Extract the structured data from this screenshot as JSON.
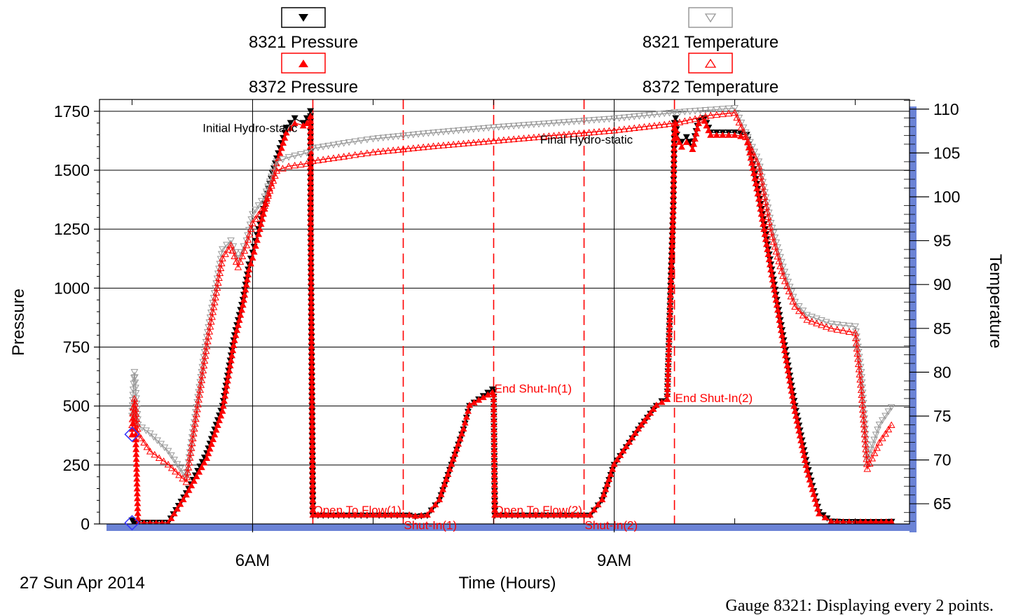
{
  "chart_data": {
    "type": "line",
    "xlabel": "Time (Hours)",
    "ylabel": "Pressure",
    "y2label": "Temperature",
    "date_label": "27 Sun Apr 2014",
    "footnote": "Gauge 8321: Displaying every 2 points.",
    "x_ticks": [
      {
        "x": 6,
        "label": "6AM"
      },
      {
        "x": 9,
        "label": "9AM"
      }
    ],
    "xlim": [
      4.73,
      11.45
    ],
    "ylim": [
      0,
      1800
    ],
    "y_ticks": [
      0,
      250,
      500,
      750,
      1000,
      1250,
      1500,
      1750
    ],
    "y2lim": [
      62.7,
      111.1
    ],
    "y2_ticks": [
      65,
      70,
      75,
      80,
      85,
      90,
      95,
      100,
      105,
      110
    ],
    "grid": true,
    "legend_position": "top",
    "legend": [
      {
        "name": "8321 Pressure",
        "marker": "filled-down-triangle",
        "color": "#000000"
      },
      {
        "name": "8372 Pressure",
        "marker": "filled-up-triangle",
        "color": "#ff0000"
      },
      {
        "name": "8321 Temperature",
        "marker": "hollow-down-triangle",
        "color": "#999999"
      },
      {
        "name": "8372 Temperature",
        "marker": "hollow-up-triangle",
        "color": "#ff0000"
      }
    ],
    "series": [
      {
        "name": "8321 Pressure",
        "axis": "left",
        "color": "#000000",
        "marker": "filled-down-triangle",
        "x": [
          5.0,
          5.01,
          5.02,
          5.03,
          5.05,
          5.15,
          5.3,
          5.45,
          5.62,
          5.75,
          5.85,
          5.92,
          5.97,
          6.0,
          6.05,
          6.12,
          6.2,
          6.28,
          6.35,
          6.42,
          6.45,
          6.48,
          6.481,
          6.5,
          6.8,
          7.0,
          7.2,
          7.3,
          7.35,
          7.45,
          7.55,
          7.65,
          7.75,
          7.8,
          7.99,
          8.0,
          8.01,
          8.2,
          8.4,
          8.6,
          8.75,
          8.8,
          8.9,
          9.0,
          9.2,
          9.35,
          9.44,
          9.49,
          9.5,
          9.51,
          9.52,
          9.56,
          9.6,
          9.65,
          9.7,
          9.75,
          9.8,
          10.0,
          10.1,
          10.2,
          10.3,
          10.4,
          10.5,
          10.6,
          10.7,
          10.8,
          10.9,
          11.0,
          11.3
        ],
        "y": [
          15,
          10,
          8,
          5,
          5,
          5,
          5,
          130,
          300,
          500,
          800,
          950,
          1100,
          1150,
          1250,
          1400,
          1550,
          1680,
          1720,
          1700,
          1720,
          1750,
          1320,
          35,
          35,
          35,
          35,
          35,
          30,
          35,
          100,
          250,
          400,
          500,
          570,
          560,
          35,
          35,
          35,
          35,
          35,
          35,
          100,
          250,
          400,
          500,
          540,
          1350,
          1700,
          1720,
          1650,
          1620,
          1640,
          1600,
          1710,
          1720,
          1660,
          1660,
          1650,
          1400,
          1100,
          800,
          500,
          250,
          50,
          10,
          8,
          8,
          8
        ]
      },
      {
        "name": "8372 Pressure",
        "axis": "left",
        "color": "#ff0000",
        "marker": "filled-up-triangle",
        "x": [
          5.0,
          5.01,
          5.02,
          5.03,
          5.05,
          5.15,
          5.3,
          5.45,
          5.62,
          5.75,
          5.85,
          5.92,
          5.97,
          6.0,
          6.05,
          6.12,
          6.2,
          6.28,
          6.35,
          6.42,
          6.45,
          6.48,
          6.481,
          6.5,
          6.8,
          7.0,
          7.2,
          7.3,
          7.35,
          7.45,
          7.55,
          7.65,
          7.75,
          7.8,
          7.99,
          8.0,
          8.01,
          8.2,
          8.4,
          8.6,
          8.75,
          8.8,
          8.9,
          9.0,
          9.2,
          9.35,
          9.44,
          9.49,
          9.5,
          9.51,
          9.52,
          9.56,
          9.6,
          9.65,
          9.7,
          9.75,
          9.8,
          10.0,
          10.1,
          10.2,
          10.3,
          10.4,
          10.5,
          10.6,
          10.7,
          10.8,
          10.9,
          11.0,
          11.3
        ],
        "y": [
          380,
          450,
          520,
          380,
          5,
          5,
          5,
          125,
          280,
          480,
          780,
          930,
          1080,
          1130,
          1230,
          1380,
          1530,
          1660,
          1700,
          1690,
          1700,
          1730,
          1300,
          40,
          40,
          40,
          40,
          40,
          35,
          40,
          105,
          255,
          405,
          505,
          560,
          550,
          40,
          40,
          40,
          40,
          40,
          40,
          105,
          255,
          405,
          505,
          530,
          1330,
          1680,
          1700,
          1640,
          1600,
          1620,
          1590,
          1700,
          1710,
          1650,
          1650,
          1640,
          1380,
          1080,
          780,
          480,
          230,
          45,
          12,
          10,
          10,
          10
        ]
      },
      {
        "name": "8321 Temperature",
        "axis": "right",
        "color": "#999999",
        "marker": "hollow-down-triangle",
        "x": [
          5.0,
          5.01,
          5.02,
          5.05,
          5.15,
          5.3,
          5.45,
          5.62,
          5.75,
          5.82,
          5.88,
          5.95,
          6.0,
          6.1,
          6.2,
          6.3,
          6.45,
          6.5,
          6.8,
          7.0,
          7.5,
          8.0,
          8.5,
          9.0,
          9.5,
          9.8,
          10.0,
          10.2,
          10.3,
          10.4,
          10.5,
          10.6,
          10.8,
          11.0,
          11.05,
          11.1,
          11.2,
          11.3
        ],
        "y": [
          75,
          78,
          80,
          74,
          73,
          71,
          68,
          84,
          94,
          95,
          93,
          95,
          98,
          100,
          104,
          104.5,
          105,
          105.5,
          106.2,
          106.6,
          107.3,
          107.9,
          108.4,
          108.9,
          109.6,
          109.9,
          110.1,
          104,
          97,
          92,
          88,
          86.5,
          85.5,
          85.2,
          80,
          70,
          74,
          76
        ]
      },
      {
        "name": "8372 Temperature",
        "axis": "right",
        "color": "#ff0000",
        "marker": "hollow-up-triangle",
        "x": [
          5.0,
          5.01,
          5.02,
          5.05,
          5.15,
          5.3,
          5.45,
          5.62,
          5.75,
          5.82,
          5.88,
          5.95,
          6.0,
          6.1,
          6.2,
          6.3,
          6.45,
          6.5,
          6.8,
          7.0,
          7.5,
          8.0,
          8.5,
          9.0,
          9.5,
          9.8,
          10.0,
          10.2,
          10.3,
          10.4,
          10.5,
          10.6,
          10.8,
          11.0,
          11.05,
          11.1,
          11.2,
          11.3
        ],
        "y": [
          74,
          76,
          77,
          73,
          71,
          69.5,
          67.5,
          83,
          93,
          94.5,
          92,
          94.5,
          97,
          99,
          103,
          103.5,
          103.8,
          104.1,
          104.7,
          105.1,
          105.8,
          106.4,
          107,
          107.6,
          108.4,
          109.3,
          109.6,
          103.5,
          96,
          91,
          87.5,
          86,
          85,
          84.5,
          78,
          69,
          72,
          74
        ]
      }
    ],
    "vlines": [
      {
        "x": 6.5,
        "style": "solid"
      },
      {
        "x": 7.25,
        "style": "dashed"
      },
      {
        "x": 8.0,
        "style": "dashed"
      },
      {
        "x": 8.75,
        "style": "dashed"
      },
      {
        "x": 9.5,
        "style": "dashed"
      }
    ],
    "annotations": [
      {
        "text": "Initial Hydro-static",
        "x": 5.58,
        "y": 1680,
        "color": "#000000"
      },
      {
        "text": "Final Hydro-static",
        "x": 8.38,
        "y": 1630,
        "color": "#000000"
      },
      {
        "text": "Open To Flow(1)",
        "x": 6.5,
        "y": 60,
        "color": "#ff0000"
      },
      {
        "text": "Shut-In(1)",
        "x": 7.25,
        "y": -5,
        "color": "#ff0000"
      },
      {
        "text": "End Shut-In(1)",
        "x": 8.0,
        "y": 575,
        "color": "#ff0000"
      },
      {
        "text": "Open To Flow(2)",
        "x": 8.0,
        "y": 60,
        "color": "#ff0000"
      },
      {
        "text": "Shut-In(2)",
        "x": 8.75,
        "y": -5,
        "color": "#ff0000"
      },
      {
        "text": "End Shut-In(2)",
        "x": 9.5,
        "y": 535,
        "color": "#ff0000"
      }
    ],
    "start_markers": [
      {
        "x": 5.0,
        "y": 380,
        "shape": "diamond",
        "color": "#3333ff"
      },
      {
        "x": 5.0,
        "y": 5,
        "shape": "diamond",
        "color": "#3333ff"
      }
    ]
  }
}
